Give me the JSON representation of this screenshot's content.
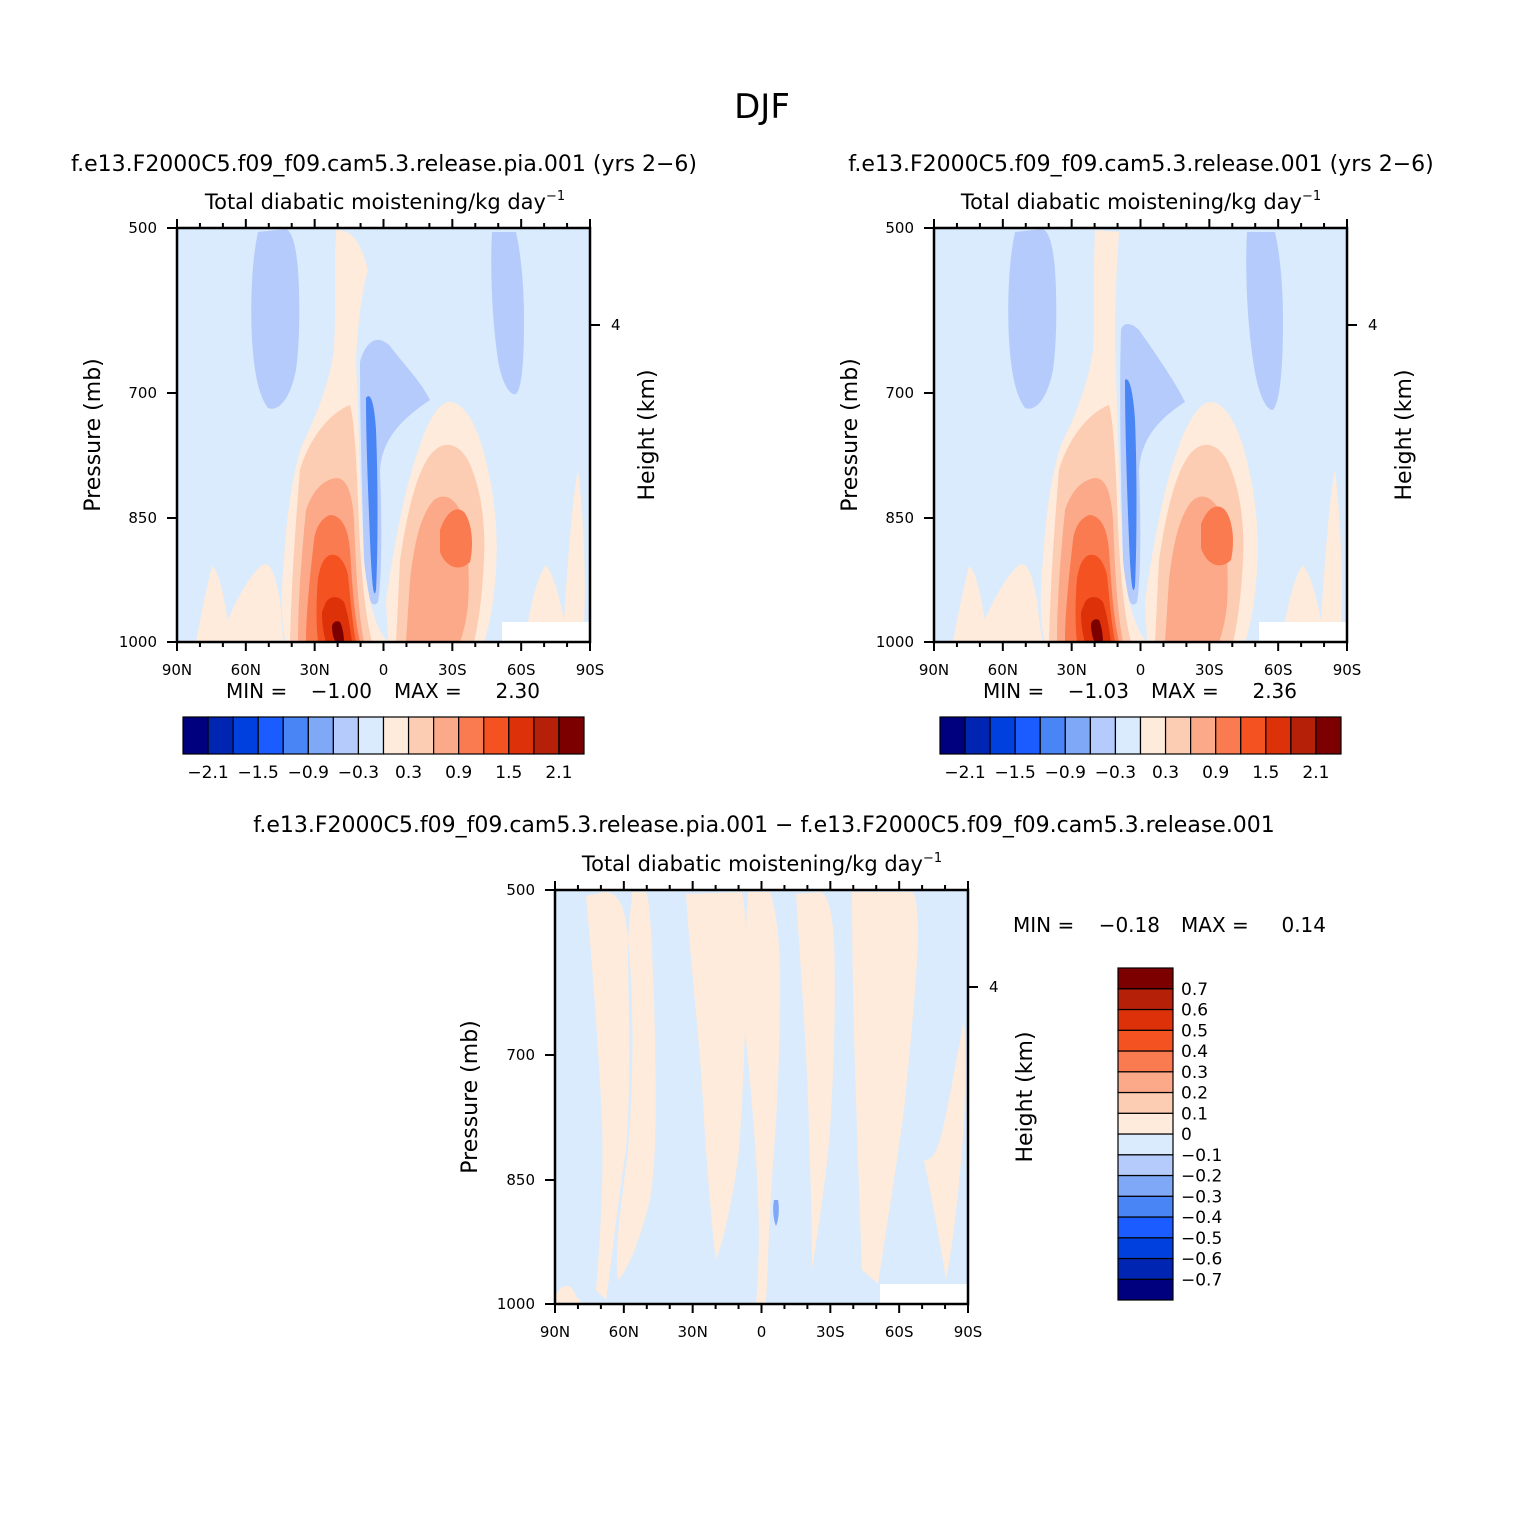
{
  "figure": {
    "title": "DJF"
  },
  "chart_data": [
    {
      "type": "heatmap",
      "title": "f.e13.F2000C5.f09_f09.cam5.3.release.pia.001 (yrs 2−6)",
      "subtitle": "Total diabatic moistening/kg day",
      "subtitle_sup": "−1",
      "xlabel": "",
      "ylabel": "Pressure (mb)",
      "ylabel_right": "Height (km)",
      "x_ticks": [
        "90N",
        "60N",
        "30N",
        "0",
        "30S",
        "60S",
        "90S"
      ],
      "y_ticks": [
        "500",
        "700",
        "850",
        "1000"
      ],
      "y_ticks_right": [
        "4"
      ],
      "xlim": [
        90,
        -90
      ],
      "ylim": [
        1000,
        500
      ],
      "stats": {
        "min_label": "MIN =",
        "min": "−1.00",
        "max_label": "MAX =",
        "max": "2.30"
      },
      "colorbar": {
        "orientation": "horizontal",
        "labels": [
          "−2.1",
          "−1.5",
          "−0.9",
          "−0.3",
          "0.3",
          "0.9",
          "1.5",
          "2.1"
        ]
      }
    },
    {
      "type": "heatmap",
      "title": "f.e13.F2000C5.f09_f09.cam5.3.release.001 (yrs 2−6)",
      "subtitle": "Total diabatic moistening/kg day",
      "subtitle_sup": "−1",
      "xlabel": "",
      "ylabel": "Pressure (mb)",
      "ylabel_right": "Height (km)",
      "x_ticks": [
        "90N",
        "60N",
        "30N",
        "0",
        "30S",
        "60S",
        "90S"
      ],
      "y_ticks": [
        "500",
        "700",
        "850",
        "1000"
      ],
      "y_ticks_right": [
        "4"
      ],
      "xlim": [
        90,
        -90
      ],
      "ylim": [
        1000,
        500
      ],
      "stats": {
        "min_label": "MIN =",
        "min": "−1.03",
        "max_label": "MAX =",
        "max": "2.36"
      },
      "colorbar": {
        "orientation": "horizontal",
        "labels": [
          "−2.1",
          "−1.5",
          "−0.9",
          "−0.3",
          "0.3",
          "0.9",
          "1.5",
          "2.1"
        ]
      }
    },
    {
      "type": "heatmap",
      "title": "f.e13.F2000C5.f09_f09.cam5.3.release.pia.001 − f.e13.F2000C5.f09_f09.cam5.3.release.001",
      "subtitle": "Total diabatic moistening/kg day",
      "subtitle_sup": "−1",
      "xlabel": "",
      "ylabel": "Pressure (mb)",
      "ylabel_right": "Height (km)",
      "x_ticks": [
        "90N",
        "60N",
        "30N",
        "0",
        "30S",
        "60S",
        "90S"
      ],
      "y_ticks": [
        "500",
        "700",
        "850",
        "1000"
      ],
      "y_ticks_right": [
        "4"
      ],
      "xlim": [
        90,
        -90
      ],
      "ylim": [
        1000,
        500
      ],
      "stats": {
        "min_label": "MIN =",
        "min": "−0.18",
        "max_label": "MAX =",
        "max": "0.14"
      },
      "colorbar": {
        "orientation": "vertical",
        "labels": [
          "0.7",
          "0.6",
          "0.5",
          "0.4",
          "0.3",
          "0.2",
          "0.1",
          "0",
          "−0.1",
          "−0.2",
          "−0.3",
          "−0.4",
          "−0.5",
          "−0.6",
          "−0.7"
        ]
      }
    }
  ],
  "colormap": [
    "#00007f",
    "#0025b3",
    "#0040df",
    "#1a5cff",
    "#4a85f5",
    "#7fa8f7",
    "#b5cbfb",
    "#d9ebfd",
    "#feebdb",
    "#fdcdb3",
    "#fca98a",
    "#fb7b50",
    "#f55222",
    "#dc3109",
    "#b52008",
    "#7c0000"
  ],
  "field_colors": {
    "background": "#d9ebfd",
    "weak_negative": "#b5cbfb",
    "negative": "#7fa8f7",
    "strong_negative": "#4a85f5",
    "weak_positive": "#feebdb"
  }
}
